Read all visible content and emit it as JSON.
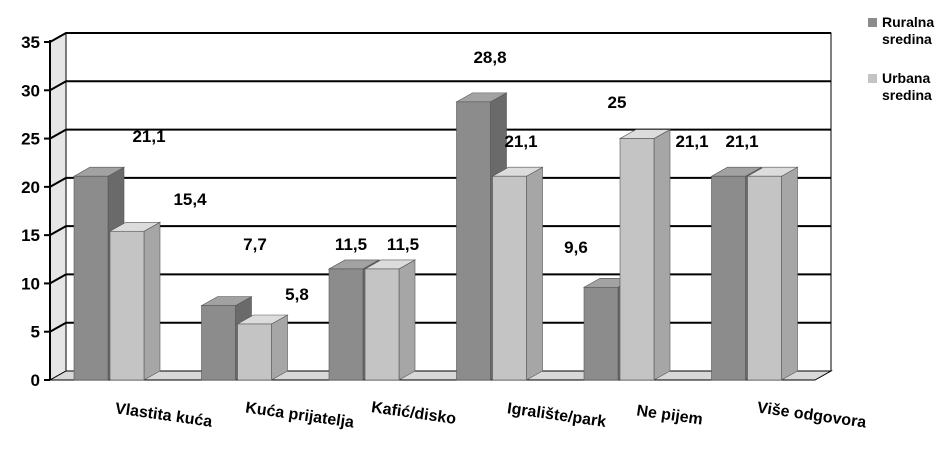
{
  "colors": {
    "rural_front": "#8c8c8c",
    "rural_side": "#6a6a6a",
    "rural_top": "#a2a2a2",
    "urban_front": "#c4c4c4",
    "urban_side": "#a6a6a6",
    "urban_top": "#dcdcdc",
    "grid": "#000000",
    "wall": "#ffffff",
    "floor": "#d8d8d8"
  },
  "chart_data": {
    "type": "bar",
    "title": "",
    "xlabel": "",
    "ylabel": "",
    "ylim": [
      0,
      35
    ],
    "yticks": [
      "0",
      "5",
      "10",
      "15",
      "20",
      "25",
      "30",
      "35"
    ],
    "grid": true,
    "legend_position": "right",
    "categories": [
      "Vlastita kuća",
      "Kuća prijatelja",
      "Kafić/disko",
      "Igralište/park",
      "Ne pijem",
      "Više odgovora"
    ],
    "series": [
      {
        "name": "Ruralna sredina",
        "color": "#8c8c8c",
        "values": [
          21.1,
          7.7,
          11.5,
          28.8,
          9.6,
          21.1
        ],
        "labels": [
          "21,1",
          "7,7",
          "11,5",
          "28,8",
          "9,6",
          "21,1"
        ]
      },
      {
        "name": "Urbana sredina",
        "color": "#c4c4c4",
        "values": [
          15.4,
          5.8,
          11.5,
          21.1,
          25,
          21.1
        ],
        "labels": [
          "15,4",
          "5,8",
          "11,5",
          "21,1",
          "25",
          "21,1"
        ]
      }
    ]
  },
  "legend": {
    "items": [
      {
        "line1": "Ruralna",
        "line2": "sredina"
      },
      {
        "line1": "Urbana",
        "line2": "sredina"
      }
    ]
  }
}
